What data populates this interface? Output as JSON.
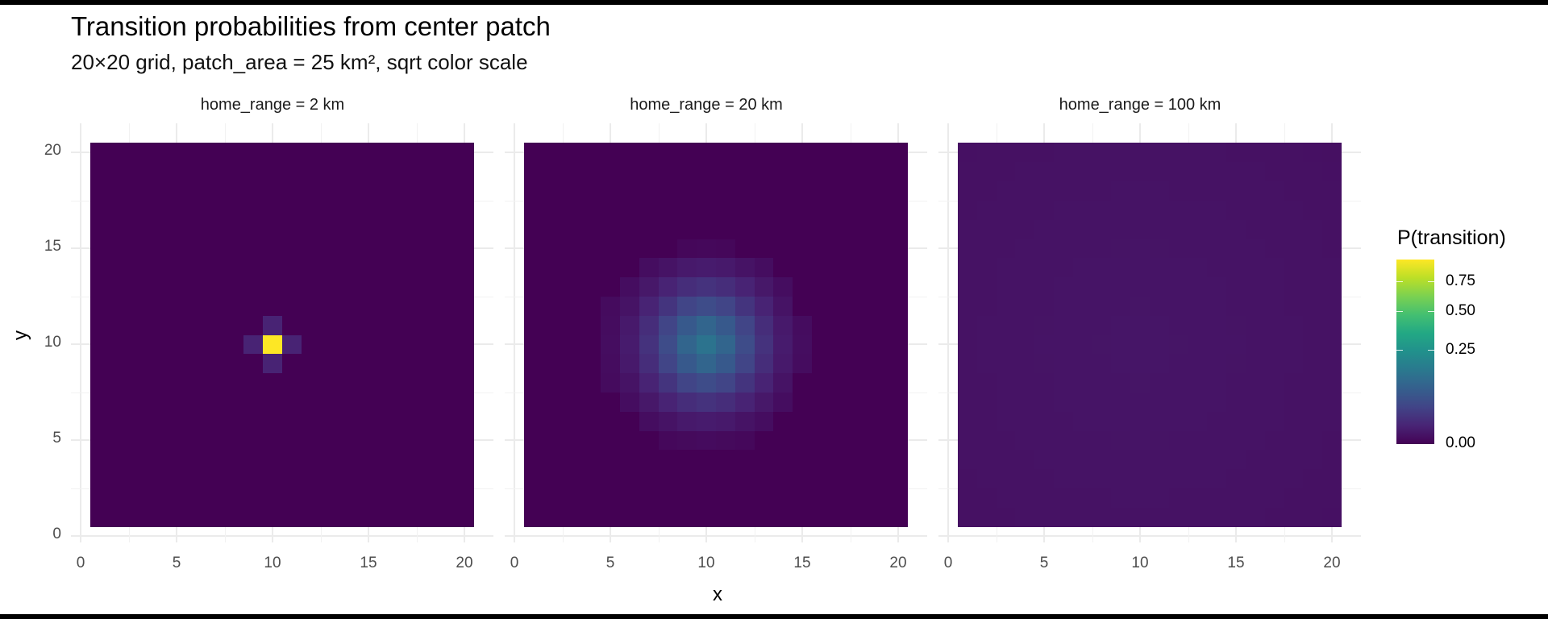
{
  "title": "Transition probabilities from center patch",
  "subtitle": "20×20 grid, patch_area = 25 km², sqrt color scale",
  "axes": {
    "x_title": "x",
    "y_title": "y",
    "x_ticks": [
      "0",
      "5",
      "10",
      "15",
      "20"
    ],
    "y_ticks": [
      "0",
      "5",
      "10",
      "15",
      "20"
    ]
  },
  "facets": [
    {
      "label": "home_range = 2 km"
    },
    {
      "label": "home_range = 20 km"
    },
    {
      "label": "home_range = 100 km"
    }
  ],
  "legend": {
    "title": "P(transition)",
    "labels": [
      "0.75",
      "0.50",
      "0.25",
      "0.00"
    ],
    "colors": {
      "low": "#440154",
      "mid": "#21908C",
      "high": "#FDE725"
    }
  },
  "chart_data": {
    "type": "heatmap",
    "title": "Transition probabilities from center patch",
    "subtitle": "20×20 grid, patch_area = 25 km², sqrt color scale",
    "xlabel": "x",
    "ylabel": "y",
    "xlim": [
      0,
      20
    ],
    "ylim": [
      0,
      20
    ],
    "grid": true,
    "legend_position": "right",
    "color_scale": {
      "name": "viridis",
      "transform": "sqrt",
      "range": [
        0,
        0.96
      ],
      "breaks": [
        0,
        0.25,
        0.5,
        0.75
      ]
    },
    "center_patch": [
      10,
      10
    ],
    "panels": [
      {
        "facet": "home_range = 2 km",
        "background": 0,
        "cells": [
          {
            "x": 10,
            "y": 10,
            "p": 0.96
          },
          {
            "x": 9,
            "y": 10,
            "p": 0.009
          },
          {
            "x": 11,
            "y": 10,
            "p": 0.009
          },
          {
            "x": 10,
            "y": 9,
            "p": 0.009
          },
          {
            "x": 10,
            "y": 11,
            "p": 0.009
          }
        ]
      },
      {
        "facet": "home_range = 20 km",
        "background": 0,
        "rows_y": [
          15,
          14,
          13,
          12,
          11,
          10,
          9,
          8,
          7,
          6,
          5
        ],
        "cols_x": [
          5,
          6,
          7,
          8,
          9,
          10,
          11,
          12,
          13,
          14,
          15
        ],
        "matrix": [
          [
            0,
            0,
            0,
            0,
            0.0003,
            0.0004,
            0.0003,
            0,
            0,
            0,
            0
          ],
          [
            0,
            0,
            0.0012,
            0.0025,
            0.0045,
            0.0055,
            0.0045,
            0.0025,
            0.0012,
            0,
            0
          ],
          [
            0,
            0.0012,
            0.004,
            0.009,
            0.016,
            0.02,
            0.016,
            0.009,
            0.004,
            0.0012,
            0
          ],
          [
            0.0008,
            0.0025,
            0.009,
            0.022,
            0.04,
            0.05,
            0.04,
            0.022,
            0.009,
            0.0025,
            0
          ],
          [
            0.001,
            0.0045,
            0.016,
            0.04,
            0.075,
            0.1,
            0.075,
            0.04,
            0.016,
            0.0045,
            0.001
          ],
          [
            0.0012,
            0.0055,
            0.02,
            0.05,
            0.1,
            0.14,
            0.1,
            0.05,
            0.02,
            0.0055,
            0.0012
          ],
          [
            0.001,
            0.0045,
            0.016,
            0.04,
            0.075,
            0.1,
            0.075,
            0.04,
            0.016,
            0.0045,
            0.001
          ],
          [
            0.0008,
            0.0025,
            0.009,
            0.022,
            0.04,
            0.05,
            0.04,
            0.022,
            0.009,
            0.0025,
            0
          ],
          [
            0,
            0.0012,
            0.004,
            0.009,
            0.016,
            0.02,
            0.016,
            0.009,
            0.004,
            0.0012,
            0
          ],
          [
            0,
            0,
            0.0012,
            0.0025,
            0.0045,
            0.0055,
            0.0045,
            0.0025,
            0.0012,
            0,
            0
          ],
          [
            0,
            0,
            0,
            0.0004,
            0.0006,
            0.0008,
            0.0006,
            0.0004,
            0,
            0,
            0
          ]
        ]
      },
      {
        "facet": "home_range = 100 km",
        "background": 0.0018,
        "center_value": 0.0032,
        "edge_value": 0.0018,
        "note_visible": "near-uniform, slightly brighter toward center"
      }
    ]
  }
}
